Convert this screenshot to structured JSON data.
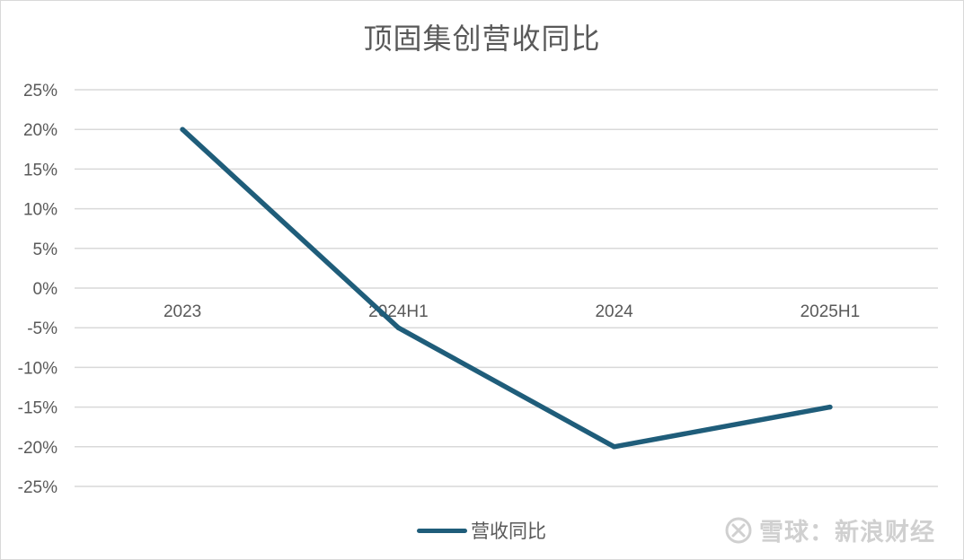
{
  "chart_data": {
    "type": "line",
    "title": "顶固集创营收同比",
    "categories": [
      "2023",
      "2024H1",
      "2024",
      "2025H1"
    ],
    "series": [
      {
        "name": "营收同比",
        "values": [
          20,
          -5,
          -20,
          -15
        ],
        "color": "#1f5d7a"
      }
    ],
    "y_unit": "%",
    "ylim": [
      -25,
      25
    ],
    "yticks": [
      25,
      20,
      15,
      10,
      5,
      0,
      -5,
      -10,
      -15,
      -20,
      -25
    ],
    "ytick_labels": [
      "25%",
      "20%",
      "15%",
      "10%",
      "5%",
      "0%",
      "-5%",
      "-10%",
      "-15%",
      "-20%",
      "-25%"
    ],
    "grid": true,
    "legend_position": "bottom-center",
    "category_labels_position": "at-zero-line"
  },
  "watermark": {
    "text": "雪球：新浪财经",
    "icon": "xueqiu-logo-icon"
  },
  "colors": {
    "series": "#1f5d7a",
    "grid": "#d9d9d9",
    "text": "#595959"
  }
}
